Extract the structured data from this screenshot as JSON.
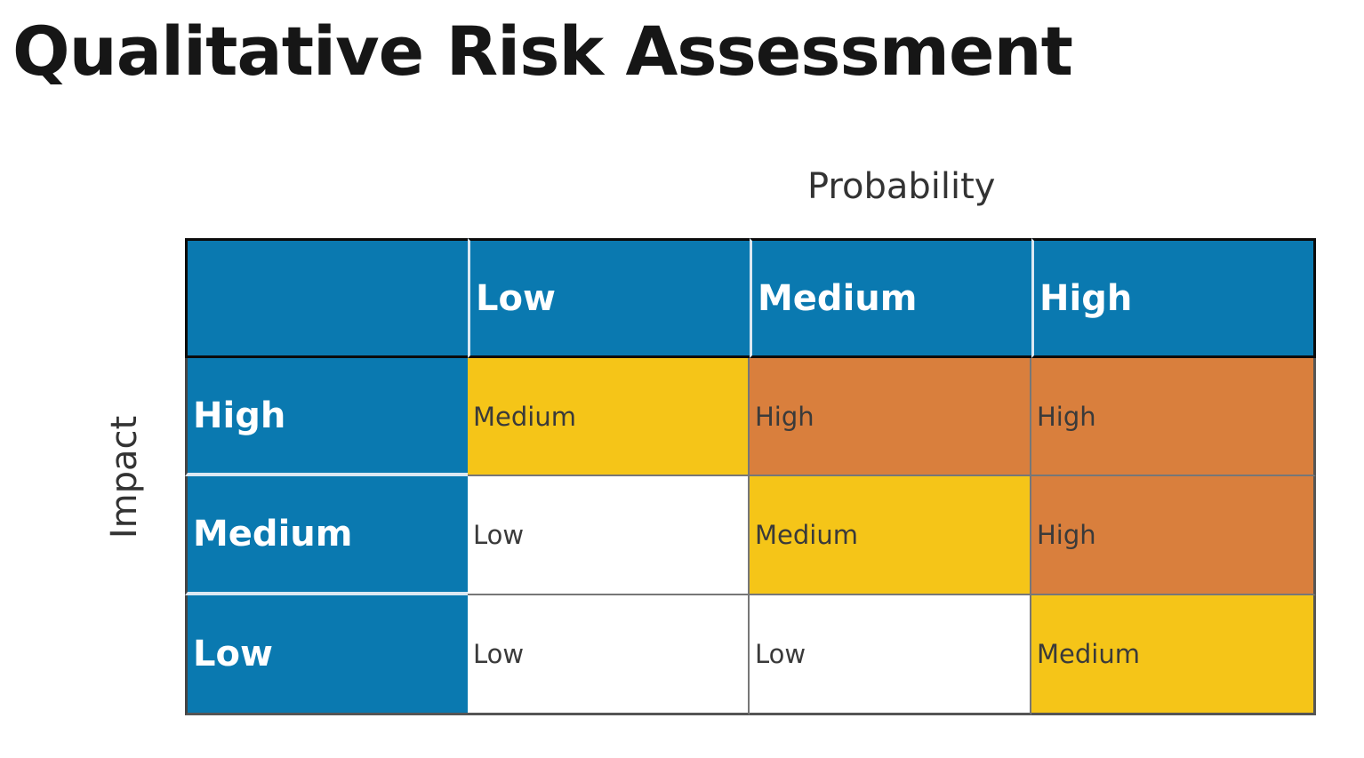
{
  "title": "Qualitative Risk Assessment",
  "axes": {
    "probability_label": "Probability",
    "impact_label": "Impact"
  },
  "colors": {
    "header_blue": "#0a79b0",
    "low": "#ffffff",
    "medium": "#f5c518",
    "high": "#d97f3d"
  },
  "matrix": {
    "columns": [
      "Low",
      "Medium",
      "High"
    ],
    "rows": [
      {
        "label": "High",
        "cells": [
          "Medium",
          "High",
          "High"
        ]
      },
      {
        "label": "Medium",
        "cells": [
          "Low",
          "Medium",
          "High"
        ]
      },
      {
        "label": "Low",
        "cells": [
          "Low",
          "Low",
          "Medium"
        ]
      }
    ]
  }
}
